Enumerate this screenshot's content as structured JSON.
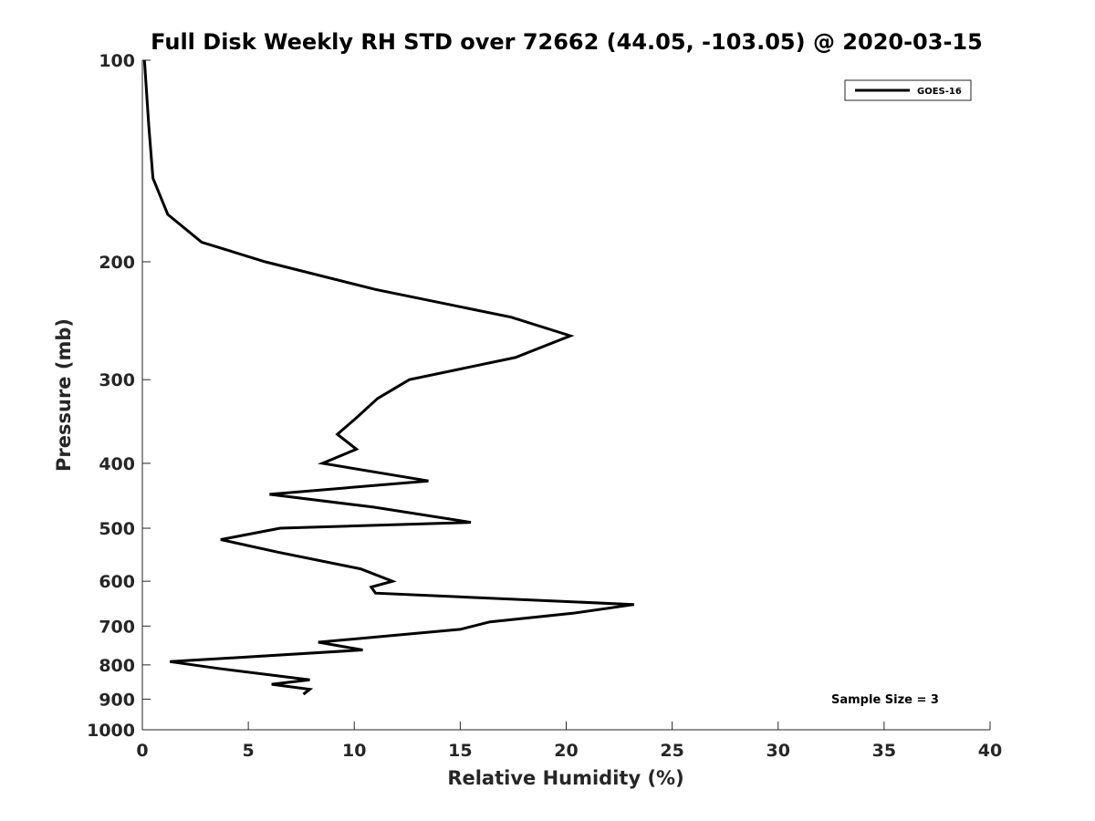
{
  "chart_data": {
    "type": "line",
    "title": "Full Disk Weekly RH STD over 72662 (44.05, -103.05) @ 2020-03-15",
    "xlabel": "Relative Humidity (%)",
    "ylabel": "Pressure (mb)",
    "xlim": [
      0,
      40
    ],
    "ylim": [
      100,
      1000
    ],
    "y_scale": "log",
    "y_reversed": true,
    "xticks": [
      0,
      5,
      10,
      15,
      20,
      25,
      30,
      35,
      40
    ],
    "yticks": [
      100,
      200,
      300,
      400,
      500,
      600,
      700,
      800,
      900,
      1000
    ],
    "grid": false,
    "legend": {
      "placement": "top-right",
      "entries": [
        "GOES-16"
      ]
    },
    "annotation": "Sample Size = 3",
    "series": [
      {
        "name": "GOES-16",
        "color": "#000000",
        "x": [
          0.1,
          0.3,
          0.5,
          1.2,
          2.8,
          5.8,
          11.0,
          17.4,
          20.2,
          17.6,
          12.6,
          11.1,
          10.1,
          9.2,
          10.1,
          8.5,
          13.5,
          6.0,
          10.9,
          15.5,
          6.5,
          3.7,
          6.4,
          10.3,
          11.8,
          10.8,
          11.0,
          23.2,
          20.3,
          16.4,
          15.0,
          8.3,
          10.4,
          1.3,
          3.6,
          7.9,
          6.1,
          7.9,
          7.6
        ],
        "y": [
          100,
          125,
          150,
          170,
          187,
          200,
          220,
          242,
          258,
          278,
          300,
          320,
          342,
          362,
          381,
          400,
          425,
          445,
          465,
          490,
          500,
          520,
          543,
          575,
          600,
          612,
          625,
          650,
          670,
          690,
          708,
          740,
          760,
          791,
          810,
          842,
          855,
          870,
          885
        ]
      }
    ]
  }
}
